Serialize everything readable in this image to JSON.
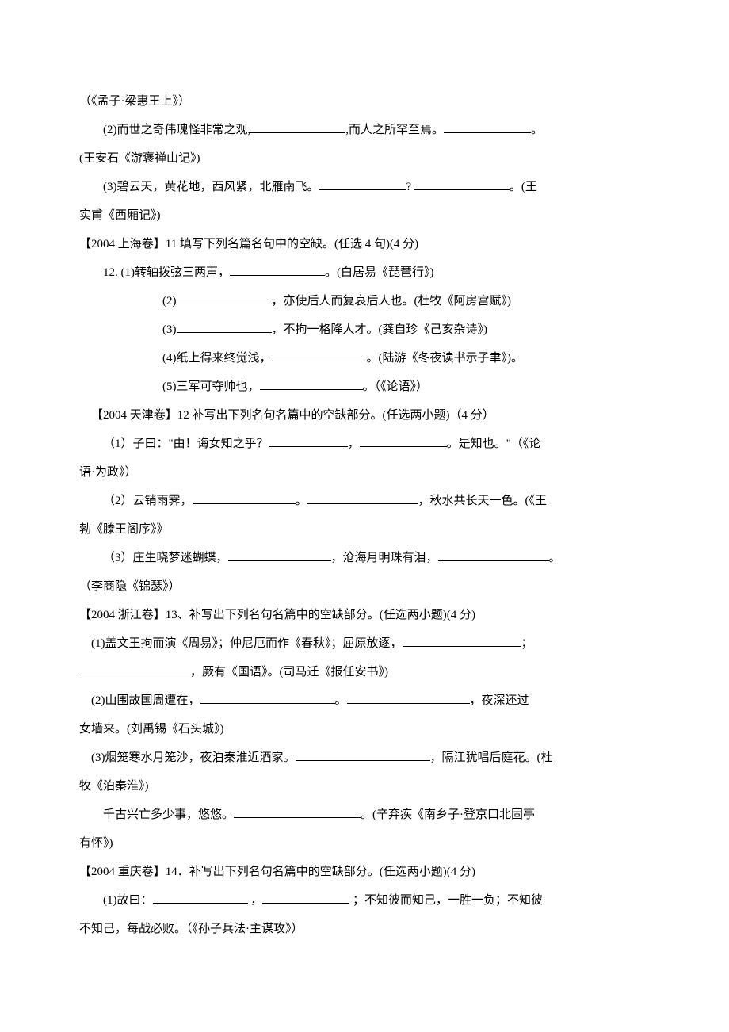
{
  "colors": {
    "text": "#000000",
    "background": "#ffffff",
    "underline": "#000000"
  },
  "typography": {
    "font_family": "SimSun",
    "font_size_pt": 11,
    "line_height": 2.4
  },
  "lines": {
    "l0": "（《孟子·梁惠王上》）",
    "g10_2a": "(2)而世之奇伟瑰怪非常之观,",
    "g10_2b": ",而人之所罕至焉。",
    "g10_2c": "。",
    "g10_src2": "(王安石《游褒禅山记》)",
    "g10_3a": "(3)碧云天，黄花地，西风紧，北雁南飞。",
    "g10_3b": "? ",
    "g10_3c": "。(王",
    "g10_src3": "实甫《西厢记》)",
    "sh_header": "【2004 上海卷】11 填写下列名篇名句中的空缺。(任选 4 句)(4 分)",
    "sh_1a": "12. (1)转轴拨弦三两声，",
    "sh_1b": "。(白居易《琵琶行》)",
    "sh_2a": "(2)",
    "sh_2b": "，亦使后人而复哀后人也。(杜牧《阿房宫赋》)",
    "sh_3a": "(3)",
    "sh_3b": "，不拘一格降人才。(龚自珍《己亥杂诗》)",
    "sh_4a": "(4)纸上得来终觉浅，",
    "sh_4b": "。(陆游《冬夜读书示子聿》)。",
    "sh_5a": "(5)三军可夺帅也，",
    "sh_5b": "。（《论语》）",
    "tj_header": "【2004 天津卷】12 补写出下列名句名篇中的空缺部分。(任选两小题)（4 分）",
    "tj_1a": "（1）子曰：\"由！诲女知之乎？",
    "tj_1b": "，",
    "tj_1c": "。是知也。\"（《论",
    "tj_1src": "语·为政》）",
    "tj_2a": "（2）云销雨霁，",
    "tj_2b": "。",
    "tj_2c": "，秋水共长天一色。(《王",
    "tj_2src": "勃《滕王阁序》》",
    "tj_3a": "（3）庄生晓梦迷蝴蝶，",
    "tj_3b": "，沧海月明珠有泪，",
    "tj_3c": "。",
    "tj_3src": "（李商隐《锦瑟》）",
    "zj_header": "【2004 浙江卷】13、补写出下列名句名篇中的空缺部分。(任选两小题)(4 分)",
    "zj_1a": "(1)盖文王拘而演《周易》；仲尼厄而作《春秋》；屈原放逐，",
    "zj_1b": "；",
    "zj_1c": "，厥有《国语》。(司马迁《报任安书》)",
    "zj_2a": "(2)山围故国周遭在，",
    "zj_2b": "。",
    "zj_2c": "，夜深还过",
    "zj_2src": "女墙来。(刘禹锡《石头城》)",
    "zj_3a": "(3)烟笼寒水月笼沙，夜泊秦淮近酒家。",
    "zj_3b": "，隔江犹唱后庭花。(杜",
    "zj_3src": "牧《泊秦淮》)",
    "zj_4a": "千古兴亡多少事，悠悠。",
    "zj_4b": "。(辛弃疾《南乡子·登京口北固亭",
    "zj_4src": "有怀》)",
    "cq_header": "【2004 重庆卷】14．补写出下列名句名篇中的空缺部分。(任选两小题)(4 分)",
    "cq_1a": "(1)故曰：",
    "cq_1b": " ，",
    "cq_1c": " ；不知彼而知己，一胜一负；不知彼",
    "cq_1src": "不知己，每战必败。（《孙子兵法·主谋攻》）"
  }
}
